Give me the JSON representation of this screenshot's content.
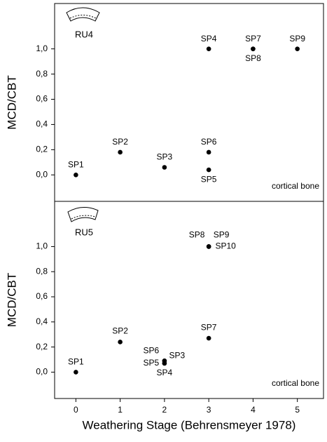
{
  "chart_data": [
    {
      "type": "scatter",
      "panel_label": "RU4",
      "annotation": "cortical bone",
      "ylabel": "MCD/CBT",
      "xlim": [
        -0.48,
        5.59
      ],
      "ylim": [
        -0.21,
        1.36
      ],
      "yticks": [
        {
          "value": 0,
          "label": "0,0"
        },
        {
          "value": 0.2,
          "label": "0,2"
        },
        {
          "value": 0.4,
          "label": "0,4"
        },
        {
          "value": 0.6,
          "label": "0,6"
        },
        {
          "value": 0.8,
          "label": "0,8"
        },
        {
          "value": 1,
          "label": "1,0"
        }
      ],
      "color": "#000000",
      "point_labels": [
        "SP1",
        "SP2",
        "SP3",
        "SP4",
        "SP5",
        "SP6",
        "SP7",
        "SP8",
        "SP9"
      ],
      "x": [
        0,
        1,
        2,
        3,
        3,
        3,
        4,
        4,
        5
      ],
      "values": [
        0.0,
        0.18,
        0.06,
        1.0,
        0.04,
        0.18,
        1.0,
        1.0,
        1.0
      ]
    },
    {
      "type": "scatter",
      "panel_label": "RU5",
      "annotation": "cortical bone",
      "ylabel": "MCD/CBT",
      "xlabel": "Weathering Stage (Behrensmeyer 1978)",
      "xlim": [
        -0.48,
        5.59
      ],
      "xticks": [
        0,
        1,
        2,
        3,
        4,
        5
      ],
      "ylim": [
        -0.21,
        1.36
      ],
      "yticks": [
        {
          "value": 0,
          "label": "0,0"
        },
        {
          "value": 0.2,
          "label": "0,2"
        },
        {
          "value": 0.4,
          "label": "0,4"
        },
        {
          "value": 0.6,
          "label": "0,6"
        },
        {
          "value": 0.8,
          "label": "0,8"
        },
        {
          "value": 1,
          "label": "1,0"
        }
      ],
      "color": "#000000",
      "point_labels": [
        "SP1",
        "SP2",
        "SP3",
        "SP4",
        "SP5",
        "SP6",
        "SP7",
        "SP8",
        "SP9",
        "SP10"
      ],
      "x": [
        0,
        1,
        2,
        2,
        2,
        2,
        3,
        3,
        3,
        3
      ],
      "values": [
        0.0,
        0.24,
        0.09,
        0.07,
        0.07,
        0.09,
        0.27,
        1.0,
        1.0,
        1.0
      ]
    }
  ]
}
